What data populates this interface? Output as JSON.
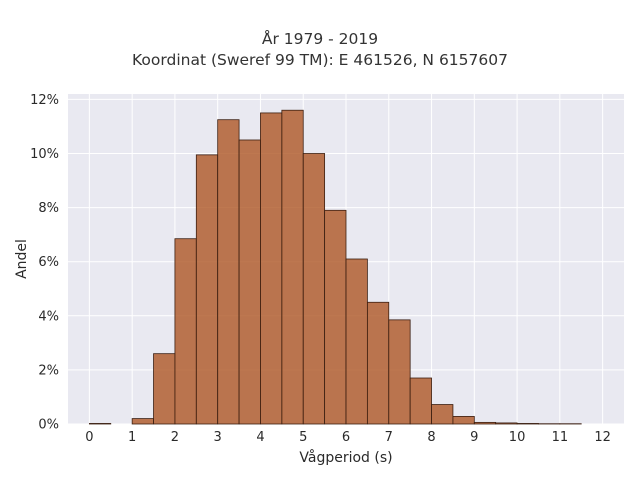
{
  "chart_data": {
    "type": "bar",
    "title": "År 1979 - 2019",
    "subtitle": "Koordinat (Sweref 99 TM): E 461526, N 6157607",
    "xlabel": "Vågperiod (s)",
    "ylabel": "Andel",
    "xlim": [
      -0.5,
      12.5
    ],
    "ylim": [
      0,
      12.2
    ],
    "x_ticks": [
      0,
      1,
      2,
      3,
      4,
      5,
      6,
      7,
      8,
      9,
      10,
      11,
      12
    ],
    "x_tick_labels": [
      "0",
      "1",
      "2",
      "3",
      "4",
      "5",
      "6",
      "7",
      "8",
      "9",
      "10",
      "11",
      "12"
    ],
    "y_ticks": [
      0,
      2,
      4,
      6,
      8,
      10,
      12
    ],
    "y_tick_labels": [
      "0%",
      "2%",
      "4%",
      "6%",
      "8%",
      "10%",
      "12%"
    ],
    "bin_width": 0.5,
    "bin_starts": [
      0,
      0.5,
      1,
      1.5,
      2,
      2.5,
      3,
      3.5,
      4,
      4.5,
      5,
      5.5,
      6,
      6.5,
      7,
      7.5,
      8,
      8.5,
      9,
      9.5,
      10,
      10.5,
      11,
      11.5
    ],
    "values": [
      0.02,
      0,
      0.2,
      2.6,
      6.85,
      9.95,
      11.25,
      10.5,
      11.5,
      11.6,
      10.0,
      7.9,
      6.1,
      4.5,
      3.85,
      1.7,
      0.72,
      0.28,
      0.06,
      0.04,
      0.02,
      0.01,
      0.01,
      0
    ],
    "grid": true,
    "colors": {
      "bar_fill": "#b05a2a",
      "bar_stroke": "#3b1e10",
      "plot_bg": "#e9e9f1",
      "grid": "#ffffff"
    }
  }
}
